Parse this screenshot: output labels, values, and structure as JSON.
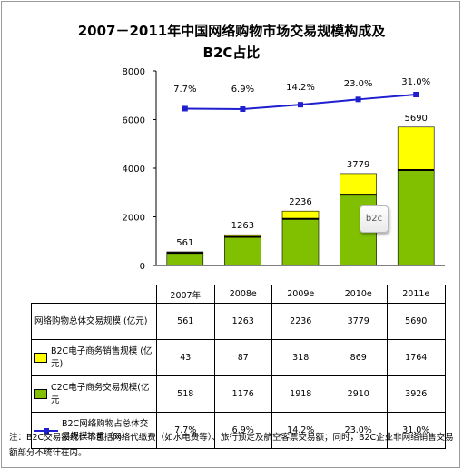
{
  "title_line1": "2007－2011年中国网络购物市场交易规模构成及",
  "title_line2": "B2C占比",
  "chart_data": {
    "type": "bar",
    "stacked": true,
    "categories": [
      "2007年",
      "2008e",
      "2009e",
      "2010e",
      "2011e"
    ],
    "ylim": [
      0,
      8000
    ],
    "yticks": [
      0,
      2000,
      4000,
      6000,
      8000
    ],
    "totals": [
      561,
      1263,
      2236,
      3779,
      5690
    ],
    "series": [
      {
        "name": "C2C电子商务交易规模(亿元",
        "values": [
          518,
          1176,
          1918,
          2910,
          3926
        ],
        "color": "#80c000"
      },
      {
        "name": "B2C电子商务销售规模 (亿元)",
        "values": [
          43,
          87,
          318,
          869,
          1764
        ],
        "color": "#ffff00"
      }
    ],
    "line_series": {
      "name": "B2C网络购物占总体交易规模比重（%）",
      "values": [
        7.7,
        6.9,
        14.2,
        23.0,
        31.0
      ],
      "labels": [
        "7.7%",
        "6.9%",
        "14.2%",
        "23.0%",
        "31.0%"
      ],
      "color": "#1f1fd0"
    }
  },
  "table": {
    "rows": [
      {
        "label": "网络购物总体交易规模 (亿元)",
        "marker": "none",
        "cells": [
          "561",
          "1263",
          "2236",
          "3779",
          "5690"
        ]
      },
      {
        "label": "B2C电子商务销售规模 (亿元)",
        "marker": "yellow",
        "cells": [
          "43",
          "87",
          "318",
          "869",
          "1764"
        ]
      },
      {
        "label": "C2C电子商务交易规模(亿元",
        "marker": "green",
        "cells": [
          "518",
          "1176",
          "1918",
          "2910",
          "3926"
        ]
      },
      {
        "label": "B2C网络购物占总体交易规模比重（%）",
        "marker": "line",
        "cells": [
          "7.7%",
          "6.9%",
          "14.2%",
          "23.0%",
          "31.0%"
        ]
      }
    ]
  },
  "callout_text": "b2c",
  "note": "注：B2C交易额统计不包括网络代缴费（如水电费等）、旅行预定及航空客票交易额；同时，B2C企业非网络销售交易额部分不统计在内。"
}
